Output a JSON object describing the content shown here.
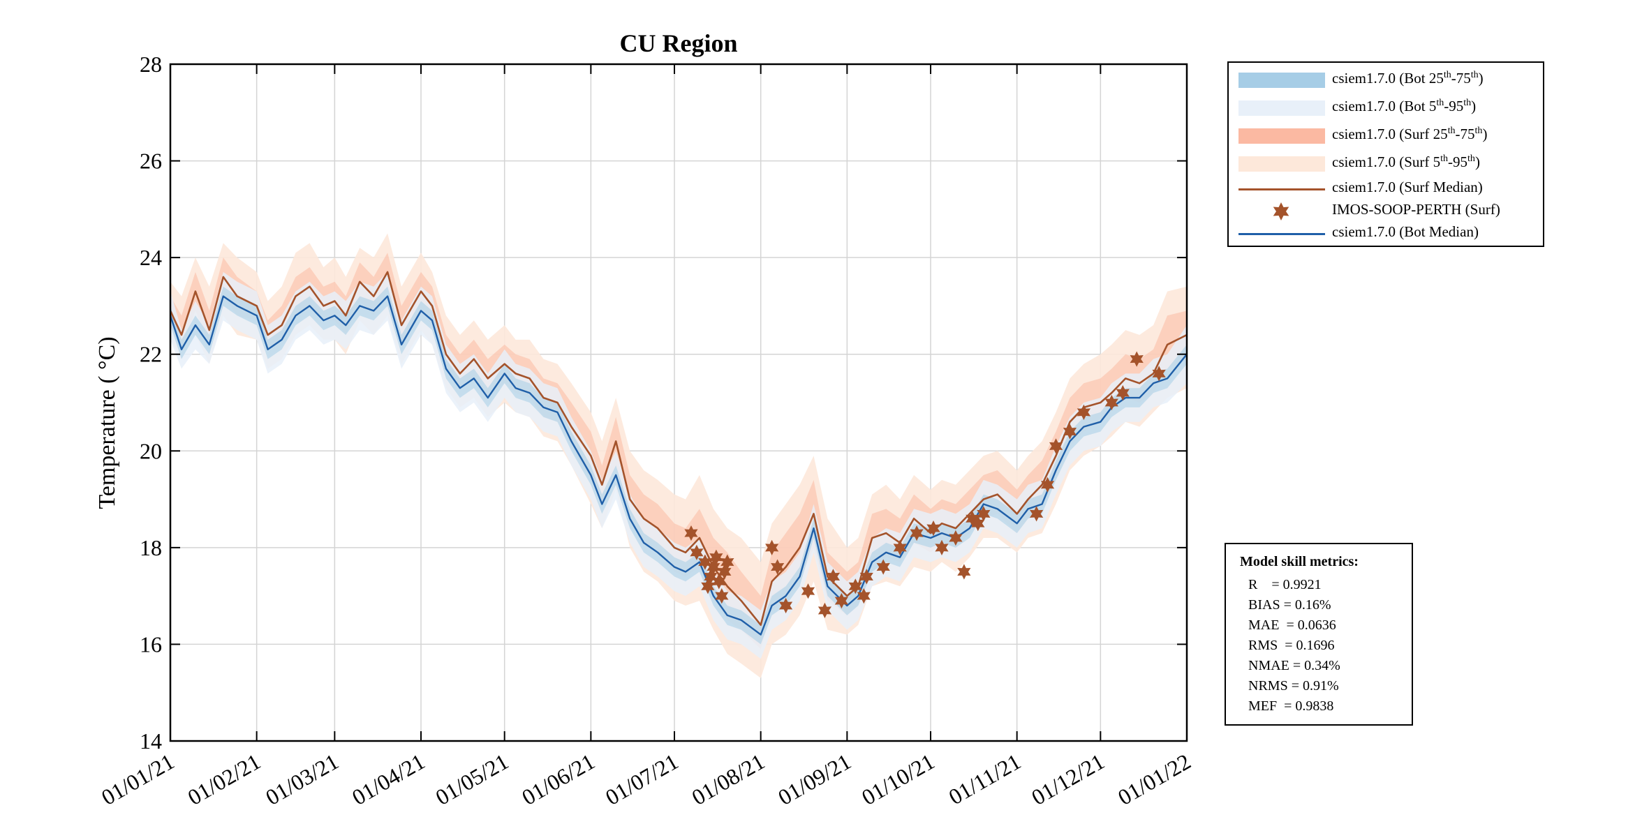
{
  "chart_data": {
    "type": "line",
    "title": "CU Region",
    "ylabel": "Temperature ( °C)",
    "ylim": [
      14,
      28
    ],
    "yticks": [
      "14",
      "16",
      "18",
      "20",
      "22",
      "24",
      "26",
      "28"
    ],
    "xticks": [
      "01/01/21",
      "01/02/21",
      "01/03/21",
      "01/04/21",
      "01/05/21",
      "01/06/21",
      "01/07/21",
      "01/08/21",
      "01/09/21",
      "01/10/21",
      "01/11/21",
      "01/12/21",
      "01/01/22"
    ],
    "xlim": [
      "2021-01-01",
      "2022-01-01"
    ],
    "grid": true,
    "legend_position": "outside-top-right",
    "colors": {
      "bot_iqr": "#a6cde6",
      "bot_5_95": "#e8f0f9",
      "surf_iqr": "#fbb9a2",
      "surf_5_95": "#fde8da",
      "surf_median": "#a4532b",
      "obs": "#a4532b",
      "bot_median": "#1f5fa8"
    },
    "series": [
      {
        "name": "csiem1.7.0 (Surf Median)",
        "x": [
          "2021-01-01",
          "2021-01-05",
          "2021-01-10",
          "2021-01-15",
          "2021-01-20",
          "2021-01-25",
          "2021-02-01",
          "2021-02-05",
          "2021-02-10",
          "2021-02-15",
          "2021-02-20",
          "2021-02-25",
          "2021-03-01",
          "2021-03-05",
          "2021-03-10",
          "2021-03-15",
          "2021-03-20",
          "2021-03-25",
          "2021-04-01",
          "2021-04-05",
          "2021-04-10",
          "2021-04-15",
          "2021-04-20",
          "2021-04-25",
          "2021-05-01",
          "2021-05-05",
          "2021-05-10",
          "2021-05-15",
          "2021-05-20",
          "2021-05-25",
          "2021-06-01",
          "2021-06-05",
          "2021-06-10",
          "2021-06-15",
          "2021-06-20",
          "2021-06-25",
          "2021-07-01",
          "2021-07-05",
          "2021-07-10",
          "2021-07-15",
          "2021-07-20",
          "2021-07-25",
          "2021-08-01",
          "2021-08-05",
          "2021-08-10",
          "2021-08-15",
          "2021-08-20",
          "2021-08-25",
          "2021-09-01",
          "2021-09-05",
          "2021-09-10",
          "2021-09-15",
          "2021-09-20",
          "2021-09-25",
          "2021-10-01",
          "2021-10-05",
          "2021-10-10",
          "2021-10-15",
          "2021-10-20",
          "2021-10-25",
          "2021-11-01",
          "2021-11-05",
          "2021-11-10",
          "2021-11-15",
          "2021-11-20",
          "2021-11-25",
          "2021-12-01",
          "2021-12-05",
          "2021-12-10",
          "2021-12-15",
          "2021-12-20",
          "2021-12-25",
          "2022-01-01"
        ],
        "y": [
          22.9,
          22.4,
          23.3,
          22.5,
          23.6,
          23.2,
          23.0,
          22.4,
          22.6,
          23.2,
          23.4,
          23.0,
          23.1,
          22.8,
          23.5,
          23.2,
          23.7,
          22.6,
          23.3,
          23.0,
          22.0,
          21.6,
          21.9,
          21.5,
          21.8,
          21.6,
          21.5,
          21.1,
          21.0,
          20.5,
          19.9,
          19.3,
          20.2,
          19.0,
          18.6,
          18.4,
          18.0,
          17.9,
          18.2,
          17.6,
          17.2,
          16.9,
          16.4,
          17.3,
          17.6,
          18.0,
          18.7,
          17.4,
          17.0,
          17.2,
          18.2,
          18.3,
          18.1,
          18.6,
          18.3,
          18.5,
          18.4,
          18.7,
          19.0,
          19.1,
          18.7,
          19.0,
          19.3,
          19.9,
          20.6,
          20.9,
          21.0,
          21.2,
          21.5,
          21.4,
          21.6,
          22.2,
          22.4
        ]
      },
      {
        "name": "csiem1.7.0 (Bot Median)",
        "x": [
          "2021-01-01",
          "2021-01-05",
          "2021-01-10",
          "2021-01-15",
          "2021-01-20",
          "2021-01-25",
          "2021-02-01",
          "2021-02-05",
          "2021-02-10",
          "2021-02-15",
          "2021-02-20",
          "2021-02-25",
          "2021-03-01",
          "2021-03-05",
          "2021-03-10",
          "2021-03-15",
          "2021-03-20",
          "2021-03-25",
          "2021-04-01",
          "2021-04-05",
          "2021-04-10",
          "2021-04-15",
          "2021-04-20",
          "2021-04-25",
          "2021-05-01",
          "2021-05-05",
          "2021-05-10",
          "2021-05-15",
          "2021-05-20",
          "2021-05-25",
          "2021-06-01",
          "2021-06-05",
          "2021-06-10",
          "2021-06-15",
          "2021-06-20",
          "2021-06-25",
          "2021-07-01",
          "2021-07-05",
          "2021-07-10",
          "2021-07-15",
          "2021-07-20",
          "2021-07-25",
          "2021-08-01",
          "2021-08-05",
          "2021-08-10",
          "2021-08-15",
          "2021-08-20",
          "2021-08-25",
          "2021-09-01",
          "2021-09-05",
          "2021-09-10",
          "2021-09-15",
          "2021-09-20",
          "2021-09-25",
          "2021-10-01",
          "2021-10-05",
          "2021-10-10",
          "2021-10-15",
          "2021-10-20",
          "2021-10-25",
          "2021-11-01",
          "2021-11-05",
          "2021-11-10",
          "2021-11-15",
          "2021-11-20",
          "2021-11-25",
          "2021-12-01",
          "2021-12-05",
          "2021-12-10",
          "2021-12-15",
          "2021-12-20",
          "2021-12-25",
          "2022-01-01"
        ],
        "y": [
          22.8,
          22.1,
          22.6,
          22.2,
          23.2,
          23.0,
          22.8,
          22.1,
          22.3,
          22.8,
          23.0,
          22.7,
          22.8,
          22.6,
          23.0,
          22.9,
          23.2,
          22.2,
          22.9,
          22.7,
          21.7,
          21.3,
          21.5,
          21.1,
          21.6,
          21.3,
          21.2,
          20.9,
          20.8,
          20.2,
          19.5,
          18.9,
          19.5,
          18.6,
          18.1,
          17.9,
          17.6,
          17.5,
          17.7,
          17.0,
          16.6,
          16.5,
          16.2,
          16.8,
          17.0,
          17.4,
          18.4,
          17.2,
          16.8,
          17.0,
          17.7,
          17.9,
          17.8,
          18.3,
          18.2,
          18.3,
          18.2,
          18.4,
          18.9,
          18.8,
          18.5,
          18.8,
          18.9,
          19.6,
          20.2,
          20.5,
          20.6,
          20.9,
          21.1,
          21.1,
          21.4,
          21.5,
          22.0
        ]
      },
      {
        "name": "IMOS-SOOP-PERTH (Surf)",
        "x": [
          "2021-07-07",
          "2021-07-09",
          "2021-07-12",
          "2021-07-13",
          "2021-07-14",
          "2021-07-15",
          "2021-07-16",
          "2021-07-17",
          "2021-07-18",
          "2021-07-19",
          "2021-07-20",
          "2021-08-05",
          "2021-08-07",
          "2021-08-10",
          "2021-08-18",
          "2021-08-24",
          "2021-08-27",
          "2021-08-30",
          "2021-09-04",
          "2021-09-07",
          "2021-09-08",
          "2021-09-14",
          "2021-09-20",
          "2021-09-26",
          "2021-10-02",
          "2021-10-05",
          "2021-10-10",
          "2021-10-13",
          "2021-10-16",
          "2021-10-18",
          "2021-10-20",
          "2021-11-08",
          "2021-11-12",
          "2021-11-15",
          "2021-11-20",
          "2021-11-25",
          "2021-12-05",
          "2021-12-09",
          "2021-12-14",
          "2021-12-22"
        ],
        "y": [
          18.3,
          17.9,
          17.7,
          17.2,
          17.4,
          17.6,
          17.8,
          17.3,
          17.0,
          17.5,
          17.7,
          18.0,
          17.6,
          16.8,
          17.1,
          16.7,
          17.4,
          16.9,
          17.2,
          17.0,
          17.4,
          17.6,
          18.0,
          18.3,
          18.4,
          18.0,
          18.2,
          17.5,
          18.6,
          18.5,
          18.7,
          18.7,
          19.3,
          20.1,
          20.4,
          20.8,
          21.0,
          21.2,
          21.9,
          21.6
        ]
      }
    ],
    "bands": [
      {
        "name": "csiem1.7.0 (Surf 5th-95th)",
        "lo": [
          22.3,
          21.9,
          22.4,
          21.8,
          22.8,
          22.4,
          22.3,
          21.7,
          21.9,
          22.4,
          22.6,
          22.3,
          22.3,
          22.0,
          22.7,
          22.4,
          22.8,
          21.8,
          22.5,
          22.2,
          21.3,
          20.9,
          21.1,
          20.7,
          21.0,
          20.8,
          20.7,
          20.3,
          20.2,
          19.7,
          18.9,
          18.4,
          19.2,
          18.0,
          17.5,
          17.3,
          16.9,
          16.8,
          16.9,
          16.3,
          15.8,
          15.6,
          15.3,
          16.0,
          16.2,
          16.6,
          17.3,
          16.3,
          16.2,
          16.4,
          17.2,
          17.3,
          17.2,
          17.6,
          17.5,
          17.7,
          17.5,
          17.8,
          18.2,
          18.2,
          17.9,
          18.2,
          18.3,
          18.9,
          19.6,
          19.9,
          20.1,
          20.3,
          20.6,
          20.5,
          20.8,
          21.1,
          21.3
        ],
        "hi": [
          23.5,
          23.2,
          24.0,
          23.4,
          24.3,
          24.0,
          23.7,
          23.1,
          23.4,
          24.1,
          24.3,
          23.8,
          24.0,
          23.6,
          24.2,
          24.0,
          24.5,
          23.4,
          24.1,
          23.7,
          22.8,
          22.4,
          22.7,
          22.3,
          22.6,
          22.3,
          22.3,
          21.9,
          21.8,
          21.4,
          20.8,
          20.2,
          21.1,
          20.0,
          19.6,
          19.4,
          19.1,
          19.0,
          19.5,
          18.8,
          18.4,
          18.2,
          17.7,
          18.5,
          18.9,
          19.3,
          19.9,
          18.6,
          18.0,
          18.2,
          19.1,
          19.3,
          19.0,
          19.5,
          19.2,
          19.4,
          19.3,
          19.6,
          19.9,
          20.0,
          19.6,
          19.9,
          20.2,
          20.8,
          21.5,
          21.8,
          22.0,
          22.2,
          22.5,
          22.4,
          22.6,
          23.3,
          23.4
        ]
      },
      {
        "name": "csiem1.7.0 (Surf 25th-75th)",
        "lo": [
          22.6,
          22.1,
          22.9,
          22.2,
          23.2,
          22.8,
          22.7,
          22.1,
          22.3,
          22.8,
          23.0,
          22.7,
          22.7,
          22.4,
          23.1,
          22.8,
          23.3,
          22.2,
          22.9,
          22.6,
          21.7,
          21.3,
          21.5,
          21.1,
          21.4,
          21.2,
          21.1,
          20.7,
          20.6,
          20.1,
          19.4,
          18.9,
          19.7,
          18.5,
          18.1,
          17.9,
          17.5,
          17.4,
          17.6,
          17.0,
          16.5,
          16.3,
          15.9,
          16.7,
          16.9,
          17.3,
          18.0,
          16.9,
          16.6,
          16.8,
          17.7,
          17.8,
          17.7,
          18.1,
          17.9,
          18.1,
          18.0,
          18.3,
          18.6,
          18.7,
          18.3,
          18.6,
          18.8,
          19.4,
          20.1,
          20.4,
          20.6,
          20.8,
          21.1,
          21.0,
          21.2,
          21.7,
          21.9
        ],
        "hi": [
          23.2,
          22.8,
          23.7,
          22.9,
          24.0,
          23.6,
          23.3,
          22.7,
          23.0,
          23.6,
          23.8,
          23.4,
          23.5,
          23.2,
          23.9,
          23.6,
          24.1,
          23.0,
          23.7,
          23.4,
          22.4,
          22.0,
          22.3,
          21.9,
          22.2,
          22.0,
          21.9,
          21.5,
          21.4,
          21.0,
          20.4,
          19.7,
          20.7,
          19.5,
          19.1,
          18.9,
          18.5,
          18.4,
          18.8,
          18.2,
          17.9,
          17.5,
          17.0,
          17.9,
          18.3,
          18.7,
          19.4,
          17.9,
          17.5,
          17.7,
          18.7,
          18.8,
          18.6,
          19.1,
          18.8,
          19.0,
          18.9,
          19.2,
          19.5,
          19.6,
          19.2,
          19.5,
          19.8,
          20.4,
          21.1,
          21.4,
          21.5,
          21.7,
          22.0,
          21.9,
          22.1,
          22.8,
          22.9
        ]
      },
      {
        "name": "csiem1.7.0 (Bot 5th-95th)",
        "lo": [
          22.3,
          21.7,
          22.1,
          21.8,
          22.7,
          22.5,
          22.3,
          21.6,
          21.8,
          22.3,
          22.5,
          22.2,
          22.3,
          22.1,
          22.5,
          22.4,
          22.7,
          21.7,
          22.4,
          22.2,
          21.2,
          20.8,
          21.0,
          20.6,
          21.1,
          20.8,
          20.7,
          20.4,
          20.3,
          19.7,
          19.0,
          18.4,
          19.0,
          18.1,
          17.6,
          17.4,
          17.1,
          17.0,
          17.2,
          16.5,
          16.1,
          16.0,
          15.7,
          16.3,
          16.5,
          16.9,
          17.9,
          16.7,
          16.3,
          16.5,
          17.2,
          17.4,
          17.3,
          17.8,
          17.7,
          17.8,
          17.7,
          17.9,
          18.4,
          18.3,
          18.0,
          18.3,
          18.4,
          19.1,
          19.7,
          20.0,
          20.1,
          20.4,
          20.6,
          20.6,
          20.9,
          21.0,
          21.4
        ],
        "hi": [
          23.3,
          22.5,
          23.1,
          22.6,
          23.7,
          23.5,
          23.3,
          22.6,
          22.8,
          23.3,
          23.5,
          23.2,
          23.3,
          23.1,
          23.5,
          23.4,
          23.7,
          22.7,
          23.4,
          23.2,
          22.2,
          21.8,
          22.0,
          21.6,
          22.1,
          21.8,
          21.7,
          21.4,
          21.3,
          20.7,
          20.0,
          19.4,
          20.0,
          19.1,
          18.6,
          18.4,
          18.1,
          18.0,
          18.2,
          17.5,
          17.1,
          17.0,
          16.7,
          17.3,
          17.5,
          17.9,
          18.9,
          17.7,
          17.3,
          17.5,
          18.2,
          18.4,
          18.3,
          18.8,
          18.7,
          18.8,
          18.7,
          18.9,
          19.4,
          19.3,
          19.0,
          19.3,
          19.4,
          20.1,
          20.7,
          21.0,
          21.1,
          21.4,
          21.6,
          21.6,
          21.9,
          22.0,
          22.6
        ]
      },
      {
        "name": "csiem1.7.0 (Bot 25th-75th)",
        "lo": [
          22.6,
          21.9,
          22.4,
          22.0,
          23.0,
          22.8,
          22.6,
          21.9,
          22.1,
          22.6,
          22.8,
          22.5,
          22.6,
          22.4,
          22.8,
          22.7,
          23.0,
          22.0,
          22.7,
          22.5,
          21.5,
          21.1,
          21.3,
          20.9,
          21.4,
          21.1,
          21.0,
          20.7,
          20.6,
          20.0,
          19.3,
          18.7,
          19.3,
          18.4,
          17.9,
          17.7,
          17.4,
          17.3,
          17.5,
          16.8,
          16.4,
          16.3,
          16.0,
          16.6,
          16.8,
          17.2,
          18.2,
          17.0,
          16.6,
          16.8,
          17.5,
          17.7,
          17.6,
          18.1,
          18.0,
          18.1,
          18.0,
          18.2,
          18.7,
          18.6,
          18.3,
          18.6,
          18.7,
          19.4,
          20.0,
          20.3,
          20.4,
          20.7,
          20.9,
          20.9,
          21.2,
          21.3,
          21.8
        ],
        "hi": [
          23.0,
          22.3,
          22.8,
          22.4,
          23.4,
          23.2,
          23.0,
          22.3,
          22.5,
          23.0,
          23.2,
          22.9,
          23.0,
          22.8,
          23.2,
          23.1,
          23.4,
          22.4,
          23.1,
          22.9,
          21.9,
          21.5,
          21.7,
          21.3,
          21.8,
          21.5,
          21.4,
          21.1,
          21.0,
          20.4,
          19.7,
          19.1,
          19.7,
          18.8,
          18.3,
          18.1,
          17.8,
          17.7,
          17.9,
          17.2,
          16.8,
          16.7,
          16.4,
          17.0,
          17.2,
          17.6,
          18.6,
          17.4,
          17.0,
          17.2,
          17.9,
          18.1,
          18.0,
          18.5,
          18.4,
          18.5,
          18.4,
          18.6,
          19.1,
          19.0,
          18.7,
          19.0,
          19.1,
          19.8,
          20.4,
          20.7,
          20.8,
          21.1,
          21.3,
          21.3,
          21.6,
          21.7,
          22.2
        ]
      }
    ]
  },
  "legend": {
    "items": [
      {
        "label": "csiem1.7.0 (Bot 25",
        "sup1": "th",
        "mid": "-75",
        "sup2": "th",
        "end": ")"
      },
      {
        "label": "csiem1.7.0 (Bot 5",
        "sup1": "th",
        "mid": "-95",
        "sup2": "th",
        "end": ")"
      },
      {
        "label": "csiem1.7.0 (Surf 25",
        "sup1": "th",
        "mid": "-75",
        "sup2": "th",
        "end": ")"
      },
      {
        "label": "csiem1.7.0 (Surf 5",
        "sup1": "th",
        "mid": "-95",
        "sup2": "th",
        "end": ")"
      },
      {
        "label": "csiem1.7.0 (Surf Median)"
      },
      {
        "label": "IMOS-SOOP-PERTH (Surf)"
      },
      {
        "label": "csiem1.7.0 (Bot Median)"
      }
    ]
  },
  "skill": {
    "title": "Model skill metrics:",
    "metrics": [
      "R    = 0.9921",
      "BIAS = 0.16%",
      "MAE  = 0.0636",
      "RMS  = 0.1696",
      "NMAE = 0.34%",
      "NRMS = 0.91%",
      "MEF  = 0.9838"
    ]
  }
}
